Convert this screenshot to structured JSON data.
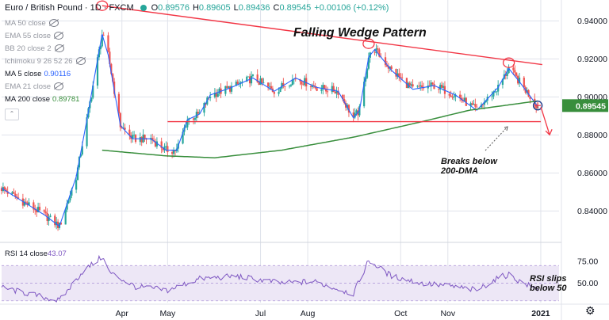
{
  "header": {
    "symbol": "Euro / British Pound · 1D · FXCM",
    "o_label": "O",
    "o_value": "0.89576",
    "h_label": "H",
    "h_value": "0.89605",
    "l_label": "L",
    "l_value": "0.89436",
    "c_label": "C",
    "c_value": "0.89545",
    "change": "+0.00106 (+0.12%)"
  },
  "indicators": [
    {
      "label": "MA 50 close",
      "value": "",
      "color": "#787b86",
      "hidden": true
    },
    {
      "label": "EMA 55 close",
      "value": "",
      "color": "#787b86",
      "hidden": true
    },
    {
      "label": "BB 20 close 2",
      "value": "",
      "color": "#787b86",
      "hidden": true
    },
    {
      "label": "Ichimoku 9 26 52 26",
      "value": "",
      "color": "#787b86",
      "hidden": true
    },
    {
      "label": "MA 5 close",
      "value": "0.90116",
      "color": "#2962ff",
      "hidden": false
    },
    {
      "label": "EMA 21 close",
      "value": "",
      "color": "#787b86",
      "hidden": true
    },
    {
      "label": "MA 200 close",
      "value": "0.89781",
      "color": "#388e3c",
      "hidden": false
    }
  ],
  "collapse_label": "⌃",
  "colors": {
    "up": "#26a69a",
    "down": "#ef5350",
    "wedge": "#f23645",
    "ma5": "#2962ff",
    "ma200": "#388e3c",
    "rsi": "#7e57c2",
    "rsi_band": "#ede7f6",
    "price_tag": "#388e3c",
    "axis_text": "#131722",
    "grid": "#e0e3eb"
  },
  "chart_data": [
    {
      "type": "candlestick",
      "title": "Falling Wedge Pattern",
      "x_ticks": [
        "Apr",
        "May",
        "Jul",
        "Aug",
        "Oct",
        "Nov",
        "2021"
      ],
      "y_ticks": [
        0.84,
        0.86,
        0.88,
        0.9,
        0.92,
        0.94
      ],
      "ylim": [
        0.826,
        0.951
      ],
      "last_price": "0.89545",
      "annotations": [
        "Falling Wedge Pattern",
        "Breaks below",
        "200-DMA"
      ],
      "price_anchors": [
        [
          "2020-01-13",
          0.852
        ],
        [
          "2020-01-27",
          0.845
        ],
        [
          "2020-02-10",
          0.838
        ],
        [
          "2020-02-20",
          0.832
        ],
        [
          "2020-03-02",
          0.858
        ],
        [
          "2020-03-09",
          0.888
        ],
        [
          "2020-03-13",
          0.906
        ],
        [
          "2020-03-19",
          0.933
        ],
        [
          "2020-03-23",
          0.922
        ],
        [
          "2020-03-31",
          0.885
        ],
        [
          "2020-04-08",
          0.878
        ],
        [
          "2020-04-20",
          0.878
        ],
        [
          "2020-04-30",
          0.872
        ],
        [
          "2020-05-07",
          0.872
        ],
        [
          "2020-05-14",
          0.888
        ],
        [
          "2020-05-22",
          0.891
        ],
        [
          "2020-05-29",
          0.901
        ],
        [
          "2020-06-12",
          0.905
        ],
        [
          "2020-06-26",
          0.91
        ],
        [
          "2020-07-10",
          0.903
        ],
        [
          "2020-07-24",
          0.91
        ],
        [
          "2020-08-07",
          0.905
        ],
        [
          "2020-08-21",
          0.903
        ],
        [
          "2020-08-31",
          0.889
        ],
        [
          "2020-09-04",
          0.893
        ],
        [
          "2020-09-10",
          0.921
        ],
        [
          "2020-09-14",
          0.925
        ],
        [
          "2020-09-25",
          0.914
        ],
        [
          "2020-10-09",
          0.904
        ],
        [
          "2020-10-23",
          0.906
        ],
        [
          "2020-11-06",
          0.901
        ],
        [
          "2020-11-20",
          0.893
        ],
        [
          "2020-12-04",
          0.905
        ],
        [
          "2020-12-11",
          0.915
        ],
        [
          "2020-12-18",
          0.908
        ],
        [
          "2020-12-30",
          0.895
        ]
      ],
      "ma200_anchors": [
        [
          "2020-03-19",
          0.872
        ],
        [
          "2020-04-30",
          0.869
        ],
        [
          "2020-06-01",
          0.868
        ],
        [
          "2020-07-15",
          0.872
        ],
        [
          "2020-09-01",
          0.879
        ],
        [
          "2020-10-15",
          0.887
        ],
        [
          "2020-11-15",
          0.893
        ],
        [
          "2020-12-31",
          0.898
        ]
      ],
      "wedge_upper": [
        [
          "2020-03-19",
          0.948
        ],
        [
          "2021-01-02",
          0.917
        ]
      ],
      "wedge_lower": [
        [
          "2020-05-01",
          0.887
        ],
        [
          "2021-01-01",
          0.887
        ]
      ],
      "highlighted_highs": [
        [
          "2020-03-19",
          0.948
        ],
        [
          "2020-09-10",
          0.928
        ],
        [
          "2020-12-11",
          0.918
        ]
      ]
    },
    {
      "type": "line",
      "name": "RSI 14 close",
      "value": "43.07",
      "y_ticks": [
        "75.00",
        "50.00"
      ],
      "band": [
        30,
        70
      ],
      "ylim": [
        28,
        82
      ],
      "annotations": [
        "RSI slips",
        "below 50"
      ],
      "rsi_anchors": [
        [
          "2020-01-13",
          45
        ],
        [
          "2020-02-20",
          30
        ],
        [
          "2020-03-06",
          63
        ],
        [
          "2020-03-19",
          80
        ],
        [
          "2020-03-24",
          62
        ],
        [
          "2020-04-10",
          46
        ],
        [
          "2020-05-01",
          42
        ],
        [
          "2020-05-22",
          55
        ],
        [
          "2020-06-15",
          58
        ],
        [
          "2020-07-15",
          50
        ],
        [
          "2020-08-05",
          52
        ],
        [
          "2020-08-31",
          38
        ],
        [
          "2020-09-10",
          76
        ],
        [
          "2020-09-25",
          58
        ],
        [
          "2020-10-15",
          50
        ],
        [
          "2020-11-05",
          46
        ],
        [
          "2020-11-20",
          42
        ],
        [
          "2020-12-04",
          56
        ],
        [
          "2020-12-11",
          60
        ],
        [
          "2020-12-18",
          52
        ],
        [
          "2020-12-30",
          43
        ]
      ]
    }
  ]
}
